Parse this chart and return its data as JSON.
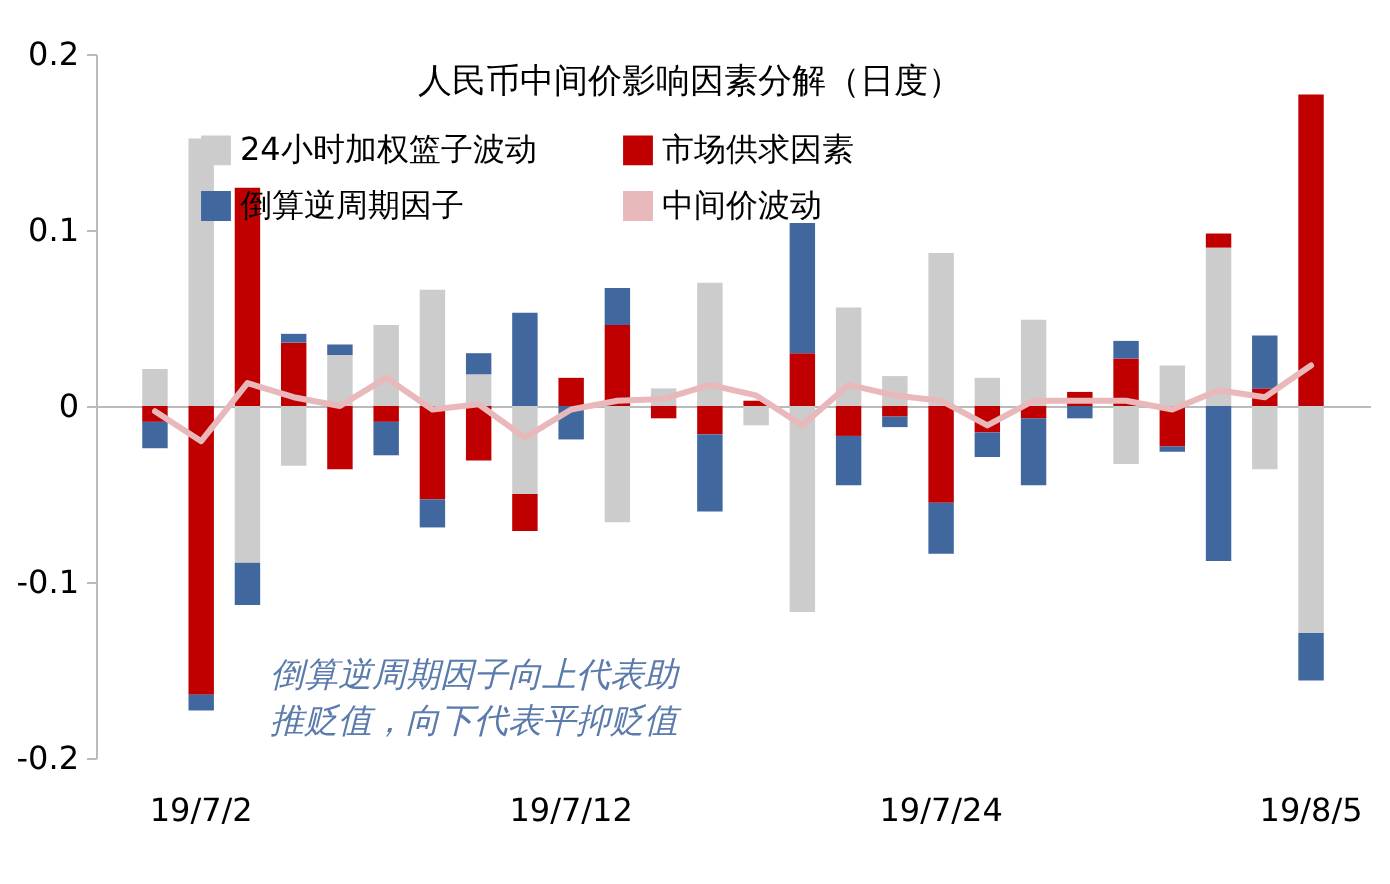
{
  "chart_data": {
    "type": "bar",
    "stacked": true,
    "title": "人民币中间价影响因素分解（日度）",
    "categories": [
      null,
      "19/7/2",
      null,
      null,
      null,
      null,
      null,
      null,
      null,
      "19/7/12",
      null,
      null,
      null,
      null,
      null,
      null,
      null,
      "19/7/24",
      null,
      null,
      null,
      null,
      null,
      null,
      null,
      "19/8/5"
    ],
    "series": [
      {
        "name": "24小时加权篮子波动",
        "color": "#cccccc",
        "values": [
          0.021,
          0.152,
          -0.089,
          -0.034,
          0.029,
          0.046,
          0.066,
          0.018,
          -0.05,
          0,
          -0.066,
          0.01,
          0.07,
          -0.011,
          -0.117,
          0.056,
          0.017,
          0.087,
          0.016,
          0.049,
          0,
          -0.033,
          0.023,
          0.09,
          -0.036,
          -0.129
        ]
      },
      {
        "name": "市场供求因素",
        "color": "#c00000",
        "values": [
          -0.009,
          -0.164,
          0.124,
          0.036,
          -0.036,
          -0.009,
          -0.053,
          -0.031,
          -0.021,
          0.016,
          0.046,
          -0.007,
          -0.016,
          0.003,
          0.03,
          -0.017,
          -0.006,
          -0.055,
          -0.015,
          -0.007,
          0.008,
          0.027,
          -0.023,
          0.008,
          0.01,
          0.177
        ]
      },
      {
        "name": "倒算逆周期因子",
        "color": "#41679f",
        "values": [
          -0.015,
          -0.009,
          -0.024,
          0.005,
          0.006,
          -0.019,
          -0.016,
          0.012,
          0.053,
          -0.019,
          0.021,
          0,
          -0.044,
          0,
          0.074,
          -0.028,
          -0.006,
          -0.029,
          -0.014,
          -0.038,
          -0.007,
          0.01,
          -0.003,
          -0.088,
          0.03,
          -0.027
        ]
      },
      {
        "name": "中间价波动",
        "type": "line",
        "color": "#e8b8bb",
        "values": [
          -0.003,
          -0.02,
          0.013,
          0.005,
          0,
          0.016,
          -0.002,
          0.001,
          -0.018,
          -0.002,
          0.003,
          0.004,
          0.012,
          0.006,
          -0.011,
          0.012,
          0.006,
          0.003,
          -0.011,
          0.003,
          0.003,
          0.003,
          -0.002,
          0.009,
          0.005,
          0.023
        ]
      }
    ],
    "ylim": [
      -0.2,
      0.2
    ],
    "yticks": [
      -0.2,
      -0.1,
      0,
      0.1,
      0.2
    ],
    "legend": "top",
    "annotations": [
      "倒算逆周期因子向上代表助",
      "推贬值，向下代表平抑贬值"
    ]
  }
}
